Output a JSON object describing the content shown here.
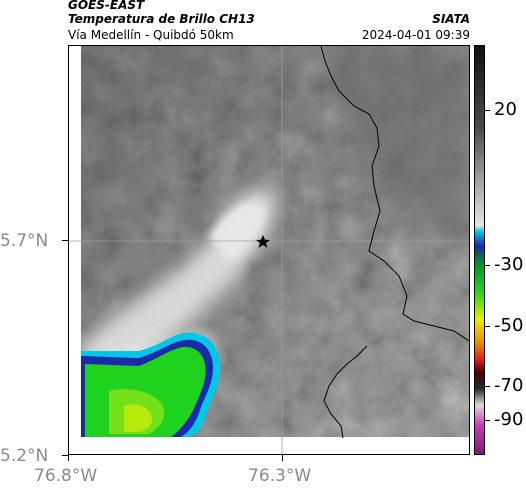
{
  "header": {
    "satellite": "GOES-EAST",
    "product": "Temperatura de Brillo CH13",
    "organization": "SIATA",
    "subtitle": "Vía Medellín - Quibdó 50km",
    "timestamp": "2024-04-01 09:39"
  },
  "map": {
    "lat_ticks": [
      "5.7°N",
      "5.2°N"
    ],
    "lon_ticks": [
      "76.8°W",
      "76.3°W"
    ],
    "marker": "star-icon",
    "marker_lon": -76.32,
    "marker_lat": 5.7
  },
  "colorbar": {
    "ticks": [
      {
        "value": 20,
        "label": "20"
      },
      {
        "value": -30,
        "label": "-30"
      },
      {
        "value": -50,
        "label": "-50"
      },
      {
        "value": -70,
        "label": "-70"
      },
      {
        "value": -90,
        "label": "-90"
      }
    ],
    "colors": {
      "warm_gray": "#7d7d7d",
      "cyan": "#00c8e6",
      "blue": "#1a2aa8",
      "green": "#1ed21e",
      "yellow": "#e6f000",
      "red": "#dc1e1e",
      "magenta": "#c83cb4"
    }
  }
}
